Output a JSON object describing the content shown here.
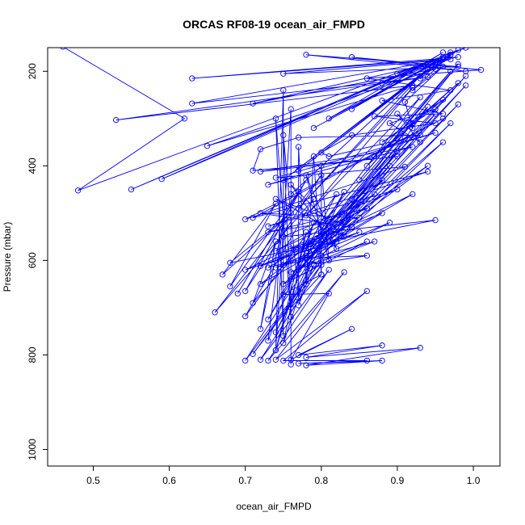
{
  "chart_data": {
    "type": "line",
    "title": "ORCAS RF08-19 ocean_air_FMPD",
    "xlabel": "ocean_air_FMPD",
    "ylabel": "Pressure (mbar)",
    "xlim": [
      0.44,
      1.035
    ],
    "ylim": [
      1035,
      150
    ],
    "y_reversed": true,
    "x_ticks": [
      "0.5",
      "0.6",
      "0.7",
      "0.8",
      "0.9",
      "1.0"
    ],
    "y_ticks": [
      "200",
      "400",
      "600",
      "800",
      "1000"
    ],
    "grid": false,
    "series": [
      {
        "color": "#0000ff",
        "marker": "open-circle",
        "points": [
          [
            0.46,
            148
          ],
          [
            0.62,
            300
          ],
          [
            0.48,
            452
          ],
          [
            0.99,
            150
          ],
          [
            0.55,
            450
          ],
          [
            0.97,
            160
          ],
          [
            0.59,
            428
          ],
          [
            0.96,
            175
          ],
          [
            0.63,
            215
          ],
          [
            0.98,
            170
          ],
          [
            0.63,
            268
          ],
          [
            0.94,
            212
          ],
          [
            0.53,
            303
          ],
          [
            0.92,
            230
          ],
          [
            0.65,
            358
          ],
          [
            0.95,
            195
          ],
          [
            0.71,
            268
          ],
          [
            0.97,
            175
          ],
          [
            0.75,
            205
          ],
          [
            0.98,
            190
          ],
          [
            0.78,
            165
          ],
          [
            0.99,
            200
          ],
          [
            0.84,
            170
          ],
          [
            1.01,
            197
          ],
          [
            0.86,
            215
          ],
          [
            0.97,
            240
          ],
          [
            0.88,
            262
          ],
          [
            0.96,
            290
          ],
          [
            0.87,
            295
          ],
          [
            0.95,
            310
          ],
          [
            0.84,
            335
          ],
          [
            0.8,
            372
          ],
          [
            0.81,
            380
          ],
          [
            0.93,
            335
          ],
          [
            0.77,
            340
          ],
          [
            0.72,
            365
          ],
          [
            0.71,
            410
          ],
          [
            0.9,
            380
          ],
          [
            0.72,
            412
          ],
          [
            0.92,
            360
          ],
          [
            0.73,
            440
          ],
          [
            0.95,
            330
          ],
          [
            0.74,
            425
          ],
          [
            0.91,
            402
          ],
          [
            0.7,
            513
          ],
          [
            0.96,
            300
          ],
          [
            0.71,
            510
          ],
          [
            0.94,
            412
          ],
          [
            0.73,
            528
          ],
          [
            0.9,
            450
          ],
          [
            0.75,
            550
          ],
          [
            0.95,
            515
          ],
          [
            0.76,
            575
          ],
          [
            0.88,
            500
          ],
          [
            0.78,
            595
          ],
          [
            0.86,
            590
          ],
          [
            0.79,
            608
          ],
          [
            0.87,
            560
          ],
          [
            0.74,
            615
          ],
          [
            0.85,
            540
          ],
          [
            0.72,
            612
          ],
          [
            0.83,
            520
          ],
          [
            0.7,
            620
          ],
          [
            0.82,
            560
          ],
          [
            0.68,
            605
          ],
          [
            0.76,
            500
          ],
          [
            0.67,
            630
          ],
          [
            0.74,
            480
          ],
          [
            0.68,
            655
          ],
          [
            0.77,
            455
          ],
          [
            0.69,
            670
          ],
          [
            0.78,
            430
          ],
          [
            0.7,
            665
          ],
          [
            0.8,
            420
          ],
          [
            0.66,
            710
          ],
          [
            0.79,
            470
          ],
          [
            0.7,
            718
          ],
          [
            0.82,
            460
          ],
          [
            0.73,
            725
          ],
          [
            0.83,
            455
          ],
          [
            0.74,
            752
          ],
          [
            0.81,
            540
          ],
          [
            0.7,
            812
          ],
          [
            0.8,
            600
          ],
          [
            0.71,
            798
          ],
          [
            0.8,
            610
          ],
          [
            0.72,
            810
          ],
          [
            0.81,
            620
          ],
          [
            0.73,
            812
          ],
          [
            0.83,
            625
          ],
          [
            0.74,
            810
          ],
          [
            0.86,
            665
          ],
          [
            0.75,
            812
          ],
          [
            0.86,
            812
          ],
          [
            0.77,
            818
          ],
          [
            0.88,
            812
          ],
          [
            0.78,
            822
          ],
          [
            0.93,
            785
          ],
          [
            0.78,
            805
          ],
          [
            0.88,
            780
          ],
          [
            0.77,
            800
          ],
          [
            0.84,
            745
          ],
          [
            0.76,
            810
          ],
          [
            0.81,
            670
          ],
          [
            0.75,
            672
          ],
          [
            0.8,
            630
          ],
          [
            0.76,
            700
          ],
          [
            0.79,
            610
          ],
          [
            0.77,
            695
          ],
          [
            0.79,
            580
          ],
          [
            0.75,
            775
          ],
          [
            0.78,
            540
          ],
          [
            0.74,
            790
          ],
          [
            0.79,
            520
          ],
          [
            0.73,
            770
          ],
          [
            0.75,
            520
          ],
          [
            0.72,
            745
          ],
          [
            0.74,
            560
          ],
          [
            0.71,
            690
          ],
          [
            0.76,
            600
          ],
          [
            0.72,
            650
          ],
          [
            0.78,
            595
          ],
          [
            0.73,
            615
          ],
          [
            0.8,
            550
          ],
          [
            0.74,
            600
          ],
          [
            0.83,
            540
          ],
          [
            0.75,
            650
          ],
          [
            0.86,
            560
          ],
          [
            0.76,
            625
          ],
          [
            0.89,
            520
          ],
          [
            0.77,
            600
          ],
          [
            0.92,
            460
          ],
          [
            0.78,
            570
          ],
          [
            0.94,
            400
          ],
          [
            0.79,
            580
          ],
          [
            0.96,
            350
          ],
          [
            0.8,
            590
          ],
          [
            0.97,
            310
          ],
          [
            0.81,
            560
          ],
          [
            0.98,
            270
          ],
          [
            0.82,
            530
          ],
          [
            0.99,
            230
          ],
          [
            0.83,
            500
          ],
          [
            0.99,
            210
          ],
          [
            0.84,
            470
          ],
          [
            0.98,
            185
          ],
          [
            0.85,
            430
          ],
          [
            0.97,
            200
          ],
          [
            0.86,
            400
          ],
          [
            0.98,
            225
          ],
          [
            0.87,
            380
          ],
          [
            0.96,
            260
          ],
          [
            0.88,
            350
          ],
          [
            0.95,
            280
          ],
          [
            0.89,
            310
          ],
          [
            0.93,
            350
          ],
          [
            0.9,
            290
          ],
          [
            0.92,
            320
          ],
          [
            0.91,
            265
          ],
          [
            0.96,
            190
          ],
          [
            0.92,
            240
          ],
          [
            0.97,
            165
          ],
          [
            0.93,
            215
          ],
          [
            0.98,
            155
          ],
          [
            0.9,
            205
          ],
          [
            0.96,
            170
          ],
          [
            0.88,
            225
          ],
          [
            0.95,
            180
          ],
          [
            0.84,
            280
          ],
          [
            0.96,
            160
          ],
          [
            0.81,
            300
          ],
          [
            0.97,
            165
          ],
          [
            0.79,
            320
          ],
          [
            0.96,
            175
          ],
          [
            0.77,
            410
          ],
          [
            0.95,
            185
          ],
          [
            0.75,
            430
          ],
          [
            0.94,
            195
          ],
          [
            0.76,
            460
          ],
          [
            0.93,
            210
          ],
          [
            0.77,
            490
          ],
          [
            0.92,
            235
          ],
          [
            0.78,
            505
          ],
          [
            0.93,
            255
          ],
          [
            0.8,
            525
          ],
          [
            0.94,
            275
          ],
          [
            0.82,
            545
          ],
          [
            0.95,
            290
          ],
          [
            0.8,
            540
          ],
          [
            0.92,
            310
          ],
          [
            0.79,
            560
          ],
          [
            0.91,
            340
          ],
          [
            0.78,
            590
          ],
          [
            0.9,
            370
          ],
          [
            0.77,
            620
          ],
          [
            0.89,
            400
          ],
          [
            0.76,
            640
          ],
          [
            0.88,
            430
          ],
          [
            0.75,
            610
          ],
          [
            0.87,
            460
          ],
          [
            0.74,
            580
          ],
          [
            0.86,
            490
          ],
          [
            0.73,
            540
          ],
          [
            0.85,
            510
          ],
          [
            0.72,
            500
          ],
          [
            0.84,
            530
          ],
          [
            0.74,
            470
          ],
          [
            0.83,
            550
          ],
          [
            0.76,
            440
          ],
          [
            0.82,
            575
          ],
          [
            0.78,
            420
          ],
          [
            0.81,
            600
          ],
          [
            0.8,
            400
          ],
          [
            0.8,
            630
          ],
          [
            0.79,
            380
          ],
          [
            0.78,
            650
          ],
          [
            0.77,
            360
          ],
          [
            0.77,
            680
          ],
          [
            0.75,
            335
          ],
          [
            0.76,
            720
          ],
          [
            0.74,
            300
          ],
          [
            0.75,
            760
          ],
          [
            0.75,
            240
          ],
          [
            0.74,
            790
          ],
          [
            0.76,
            280
          ],
          [
            0.76,
            820
          ]
        ]
      }
    ]
  }
}
